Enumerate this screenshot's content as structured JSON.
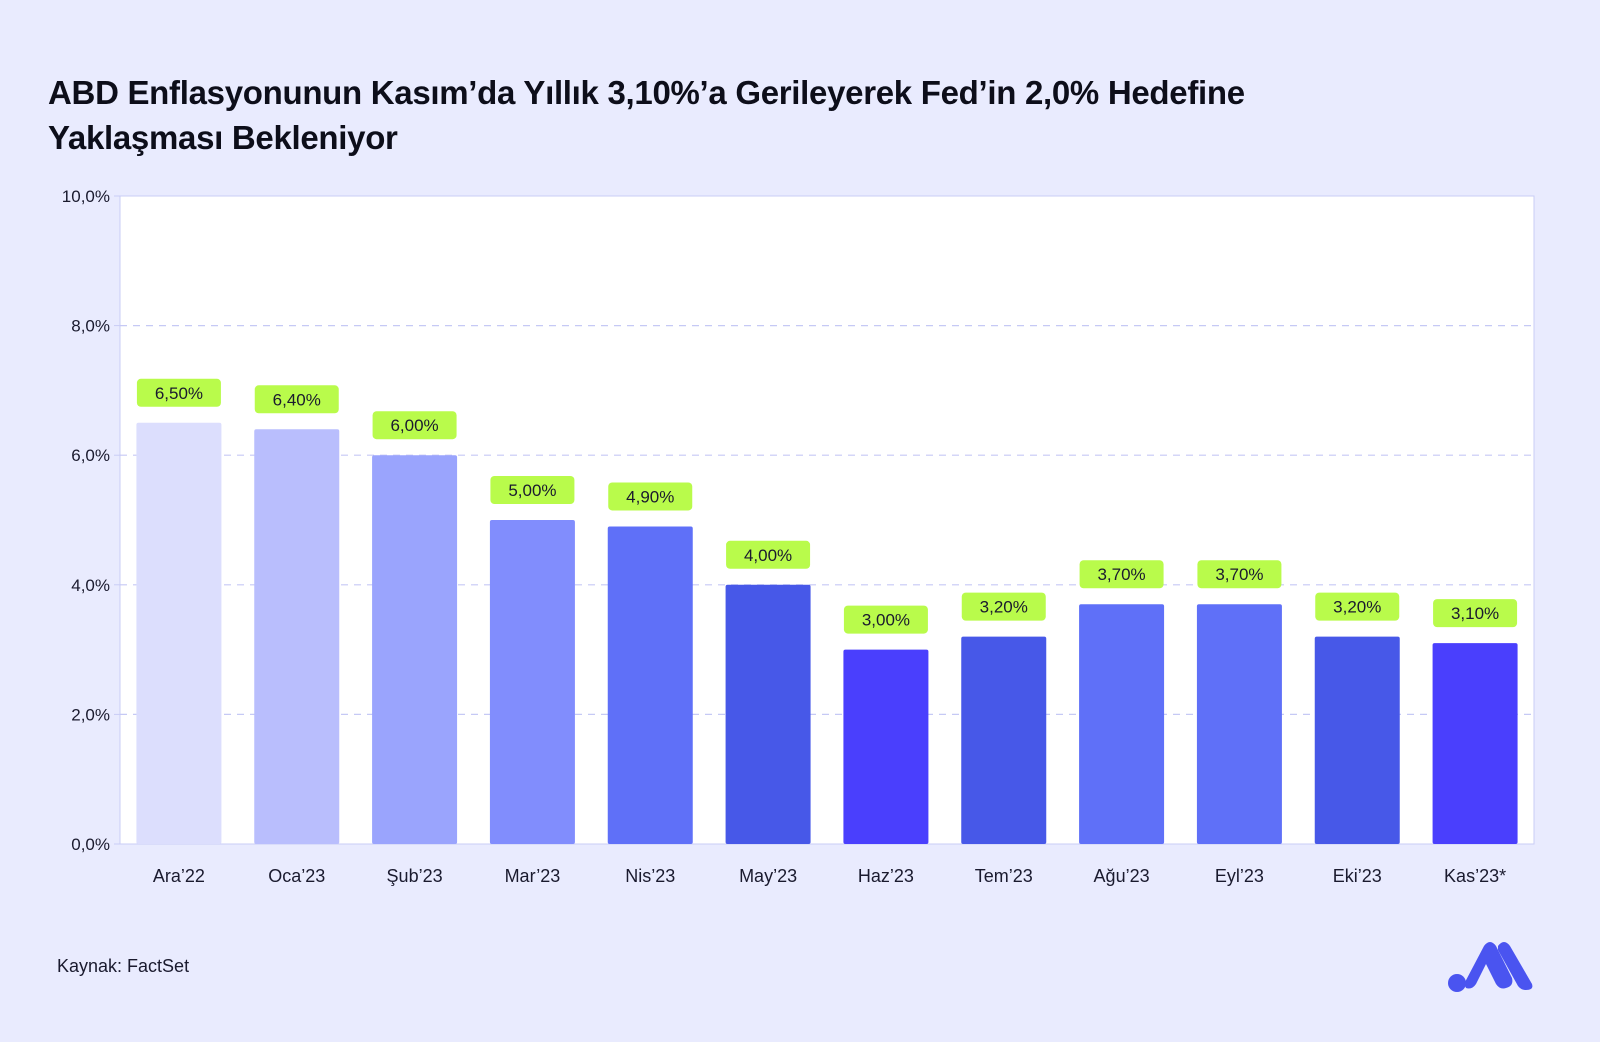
{
  "title": {
    "line1": "ABD Enflasyonunun Kasım’da Yıllık 3,10%’a Gerileyerek Fed’in 2,0% Hedefine",
    "line2": "Yaklaşması Bekleniyor"
  },
  "source": "Kaynak: FactSet",
  "logo_icon": "brand-logo-icon",
  "colors": {
    "background": "#e9ebfe",
    "plot_background": "#ffffff",
    "label_background": "#b9fb4b",
    "grid": "#c6c9f5"
  },
  "chart_data": {
    "type": "bar",
    "ylim": [
      0,
      10
    ],
    "y_ticks": [
      "0,0%",
      "2,0%",
      "4,0%",
      "6,0%",
      "8,0%",
      "10,0%"
    ],
    "grid": "dashed",
    "categories": [
      "Ara’22",
      "Oca’23",
      "Şub’23",
      "Mar’23",
      "Nis’23",
      "May’23",
      "Haz’23",
      "Tem’23",
      "Ağu’23",
      "Eyl’23",
      "Eki’23",
      "Kas’23*"
    ],
    "values": [
      6.5,
      6.4,
      6.0,
      5.0,
      4.9,
      4.0,
      3.0,
      3.2,
      3.7,
      3.7,
      3.2,
      3.1
    ],
    "value_labels": [
      "6,50%",
      "6,40%",
      "6,00%",
      "5,00%",
      "4,90%",
      "4,00%",
      "3,00%",
      "3,20%",
      "3,70%",
      "3,70%",
      "3,20%",
      "3,10%"
    ],
    "bar_colors": [
      "#dcdefd",
      "#b9befd",
      "#9aa4fd",
      "#818dfd",
      "#5f70f8",
      "#4758e8",
      "#4a3ffd",
      "#4758e8",
      "#5f70f8",
      "#5f70f8",
      "#4758e8",
      "#4a3ffd"
    ]
  }
}
